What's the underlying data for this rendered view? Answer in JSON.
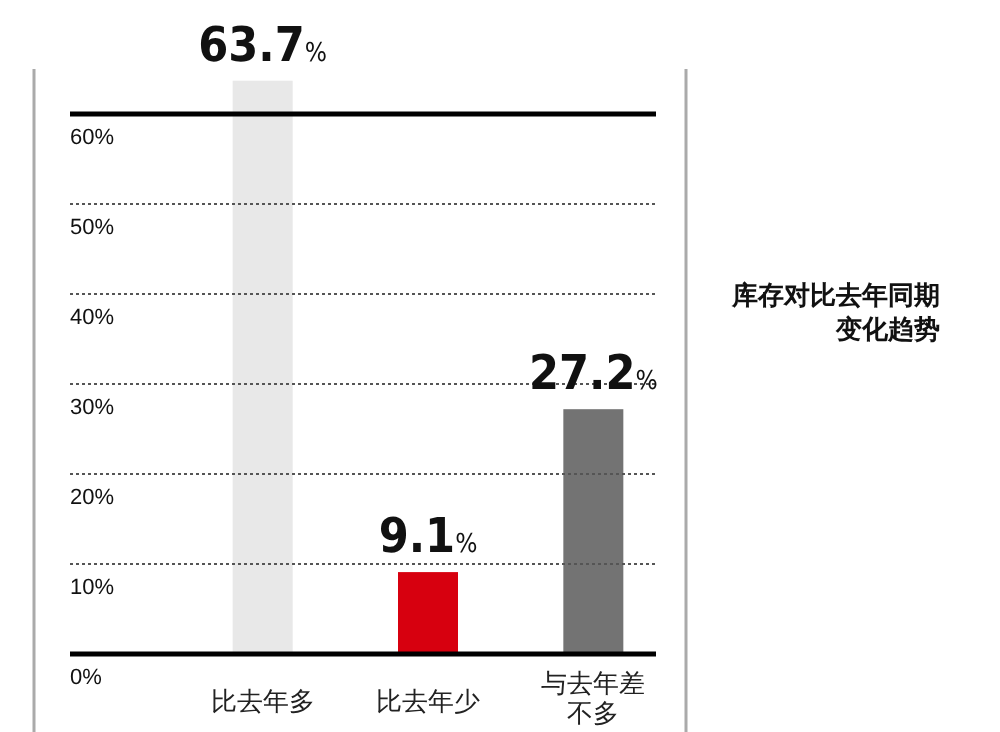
{
  "chart_data": {
    "type": "bar",
    "title": "库存对比去年同期变化趋势",
    "categories": [
      "比去年多",
      "比去年少",
      "与去年差不多"
    ],
    "values": [
      63.7,
      9.1,
      27.2
    ],
    "colors": [
      "#e8e8e8",
      "#d7000f",
      "#737373"
    ],
    "value_labels": [
      "63.7%",
      "9.1%",
      "27.2%"
    ],
    "ylim": [
      0,
      65
    ],
    "yticks": [
      {
        "value": 0,
        "label": "0%"
      },
      {
        "value": 10,
        "label": "10%"
      },
      {
        "value": 20,
        "label": "20%"
      },
      {
        "value": 30,
        "label": "30%"
      },
      {
        "value": 40,
        "label": "40%"
      },
      {
        "value": 50,
        "label": "50%"
      },
      {
        "value": 60,
        "label": "60%"
      }
    ],
    "grid": "y",
    "ref_lines": [
      {
        "axis": "y",
        "value": 60,
        "color": "#000000",
        "line_style": "solid"
      }
    ]
  }
}
